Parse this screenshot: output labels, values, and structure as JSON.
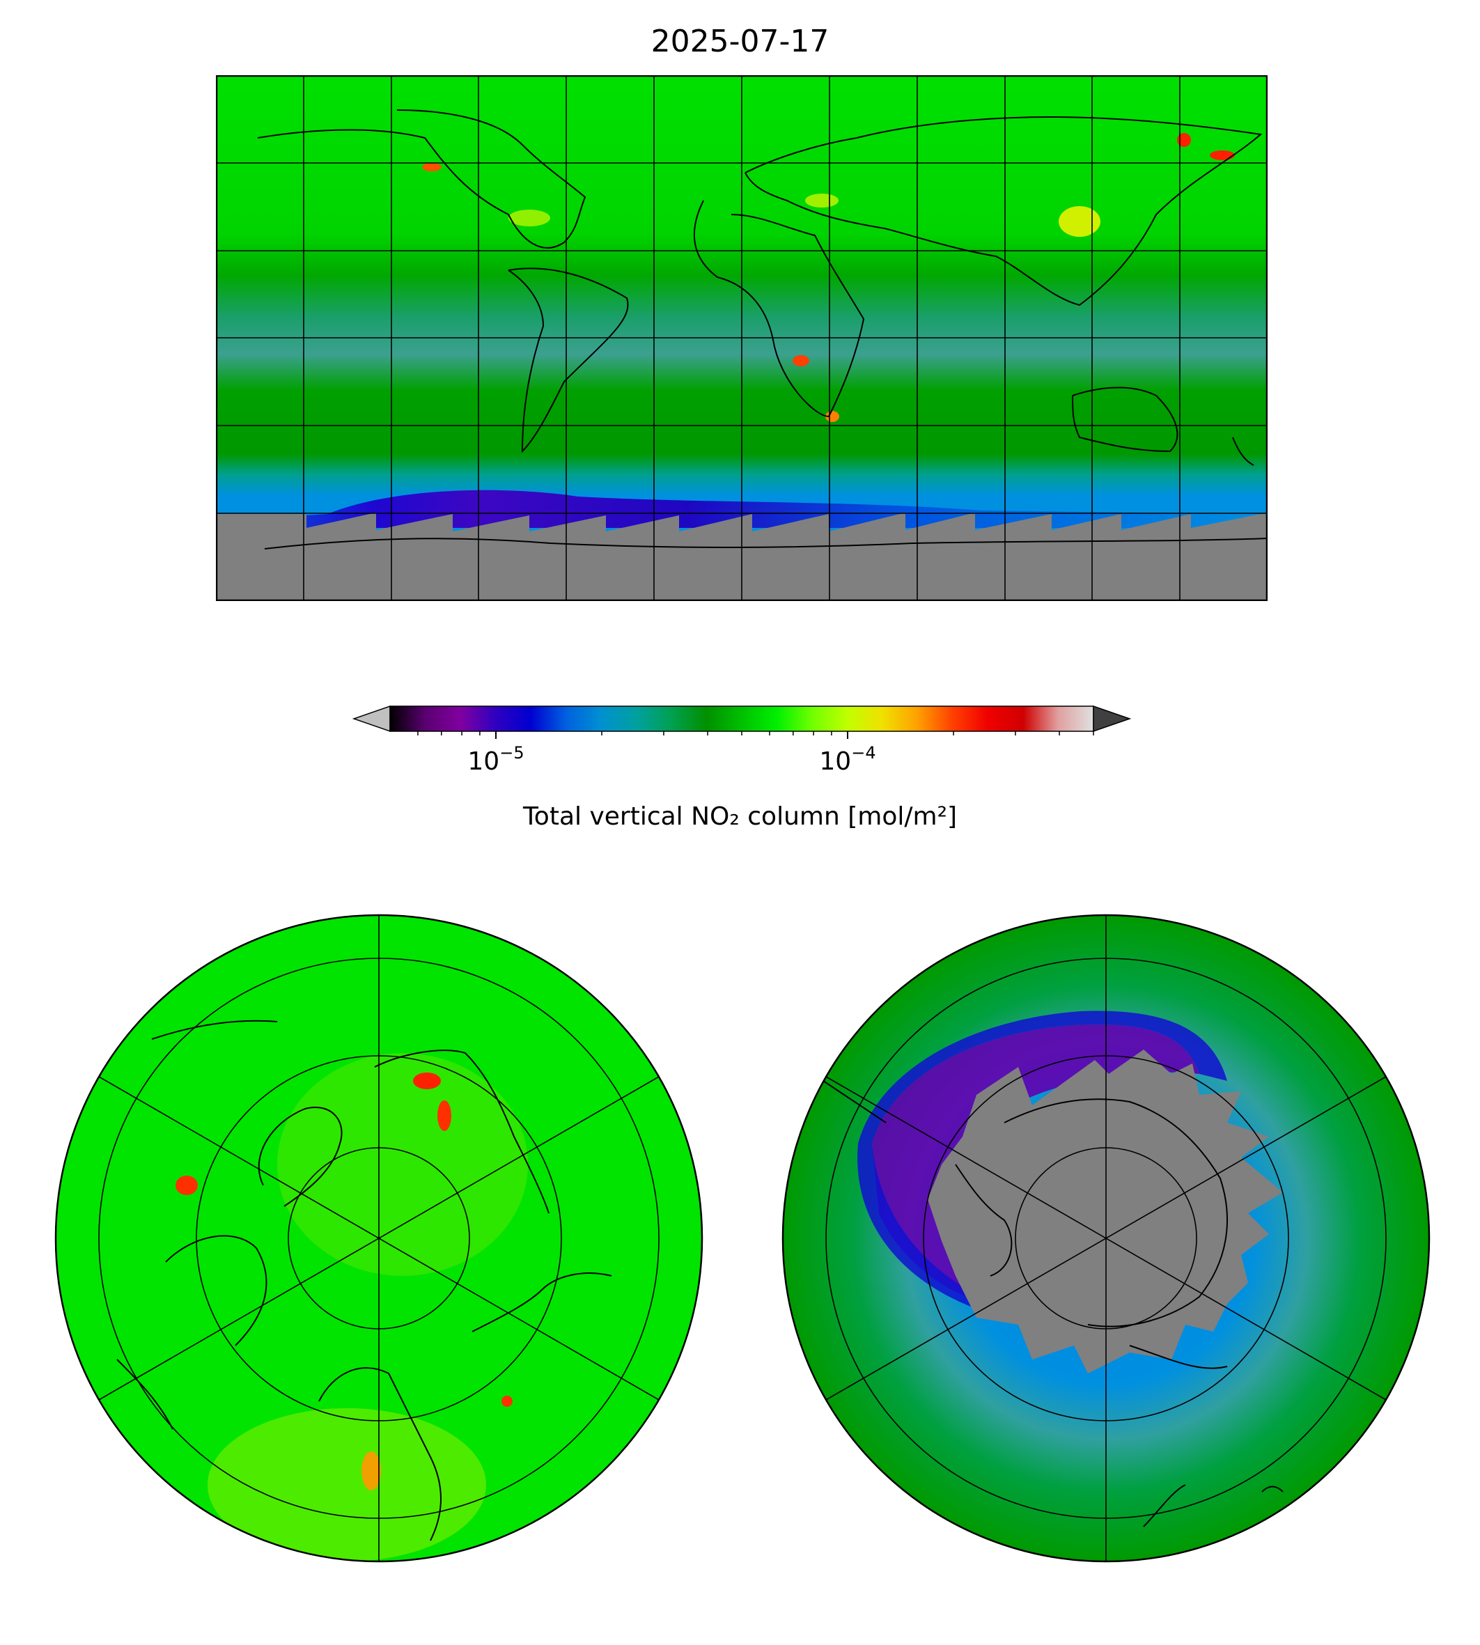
{
  "figure": {
    "title": "2025-07-17"
  },
  "colorbar": {
    "label": "Total vertical NO₂ column [mol/m²]",
    "scale": "log",
    "range": [
      5e-06,
      0.0005
    ],
    "ticks": [
      {
        "value": 1e-05,
        "base": "10",
        "exp": "−5"
      },
      {
        "value": 0.0001,
        "base": "10",
        "exp": "−4"
      }
    ],
    "extend": "both",
    "under_color": "#c0c0c0",
    "over_color": "#404040",
    "colormap": [
      "#000000",
      "#5a0070",
      "#8000a0",
      "#3000c0",
      "#0000d0",
      "#0060e0",
      "#0090d0",
      "#00a0a0",
      "#00a050",
      "#009000",
      "#00c000",
      "#00f000",
      "#70ff00",
      "#c0ff00",
      "#f0e000",
      "#ffa000",
      "#ff4000",
      "#f00000",
      "#d00000",
      "#e0a0a0",
      "#e0e0e0"
    ]
  },
  "maps": [
    {
      "name": "global",
      "projection": "equirectangular",
      "gridlines": "on"
    },
    {
      "name": "north-polar",
      "projection": "north polar stereographic",
      "gridlines": "on"
    },
    {
      "name": "south-polar",
      "projection": "south polar stereographic",
      "gridlines": "on"
    }
  ],
  "colors": {
    "no_data": "#808080",
    "background_green": "#00c800",
    "southern_green": "#009a00",
    "coast": "#000000"
  }
}
